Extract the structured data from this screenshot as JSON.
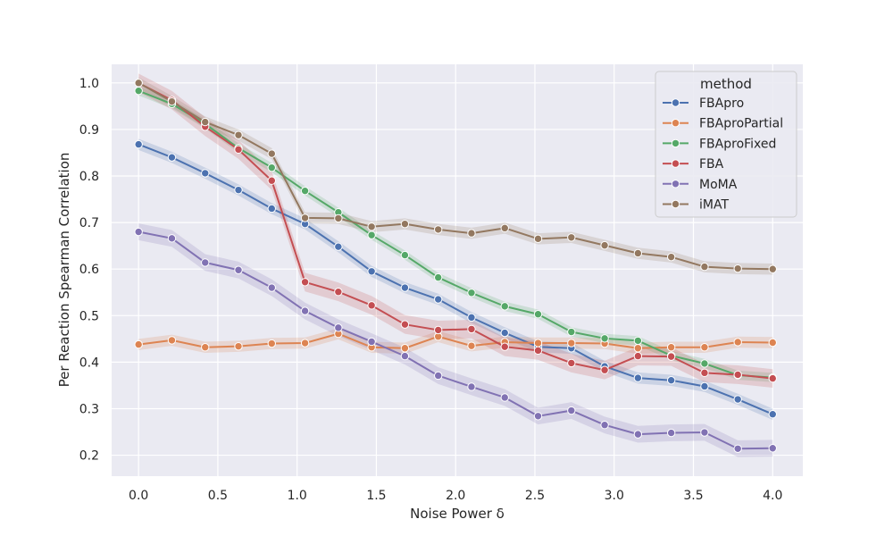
{
  "chart_data": {
    "type": "line",
    "title": "",
    "xlabel": "Noise Power δ",
    "ylabel": "Per Reaction Spearman Correlation",
    "xlim": [
      -0.17,
      4.19
    ],
    "ylim": [
      0.155,
      1.04
    ],
    "xticks": [
      0.0,
      0.5,
      1.0,
      1.5,
      2.0,
      2.5,
      3.0,
      3.5,
      4.0
    ],
    "yticks": [
      0.2,
      0.3,
      0.4,
      0.5,
      0.6,
      0.7,
      0.8,
      0.9,
      1.0
    ],
    "grid": true,
    "legend": {
      "title": "method",
      "position": "top-right"
    },
    "x": [
      0.0,
      0.21,
      0.42,
      0.63,
      0.84,
      1.05,
      1.26,
      1.47,
      1.68,
      1.89,
      2.1,
      2.31,
      2.52,
      2.73,
      2.94,
      3.15,
      3.36,
      3.57,
      3.78,
      4.0
    ],
    "series": [
      {
        "name": "FBApro",
        "color": "#4c72b0",
        "band": 0.012,
        "values": [
          0.868,
          0.84,
          0.806,
          0.77,
          0.73,
          0.697,
          0.648,
          0.595,
          0.56,
          0.535,
          0.496,
          0.463,
          0.433,
          0.43,
          0.391,
          0.366,
          0.361,
          0.348,
          0.32,
          0.288
        ]
      },
      {
        "name": "FBAproPartial",
        "color": "#dd8452",
        "band": 0.012,
        "values": [
          0.438,
          0.447,
          0.432,
          0.434,
          0.44,
          0.441,
          0.461,
          0.432,
          0.43,
          0.455,
          0.435,
          0.443,
          0.441,
          0.441,
          0.44,
          0.43,
          0.432,
          0.432,
          0.443,
          0.442
        ]
      },
      {
        "name": "FBAproFixed",
        "color": "#55a868",
        "band": 0.01,
        "values": [
          0.983,
          0.955,
          0.912,
          0.86,
          0.818,
          0.768,
          0.722,
          0.673,
          0.63,
          0.582,
          0.549,
          0.52,
          0.503,
          0.465,
          0.451,
          0.446,
          0.414,
          0.397,
          0.372,
          0.367
        ]
      },
      {
        "name": "FBA",
        "color": "#c44e52",
        "band": 0.02,
        "values": [
          1.0,
          0.963,
          0.906,
          0.857,
          0.79,
          0.572,
          0.551,
          0.522,
          0.481,
          0.469,
          0.471,
          0.433,
          0.425,
          0.398,
          0.383,
          0.413,
          0.412,
          0.377,
          0.373,
          0.365
        ]
      },
      {
        "name": "MoMA",
        "color": "#8172b3",
        "band": 0.018,
        "values": [
          0.68,
          0.666,
          0.614,
          0.598,
          0.56,
          0.51,
          0.474,
          0.444,
          0.413,
          0.371,
          0.347,
          0.324,
          0.284,
          0.296,
          0.265,
          0.245,
          0.248,
          0.249,
          0.214,
          0.215
        ]
      },
      {
        "name": "iMAT",
        "color": "#937860",
        "band": 0.012,
        "values": [
          1.0,
          0.96,
          0.916,
          0.888,
          0.848,
          0.71,
          0.709,
          0.691,
          0.697,
          0.685,
          0.677,
          0.688,
          0.665,
          0.668,
          0.651,
          0.634,
          0.626,
          0.605,
          0.601,
          0.6
        ]
      }
    ]
  }
}
